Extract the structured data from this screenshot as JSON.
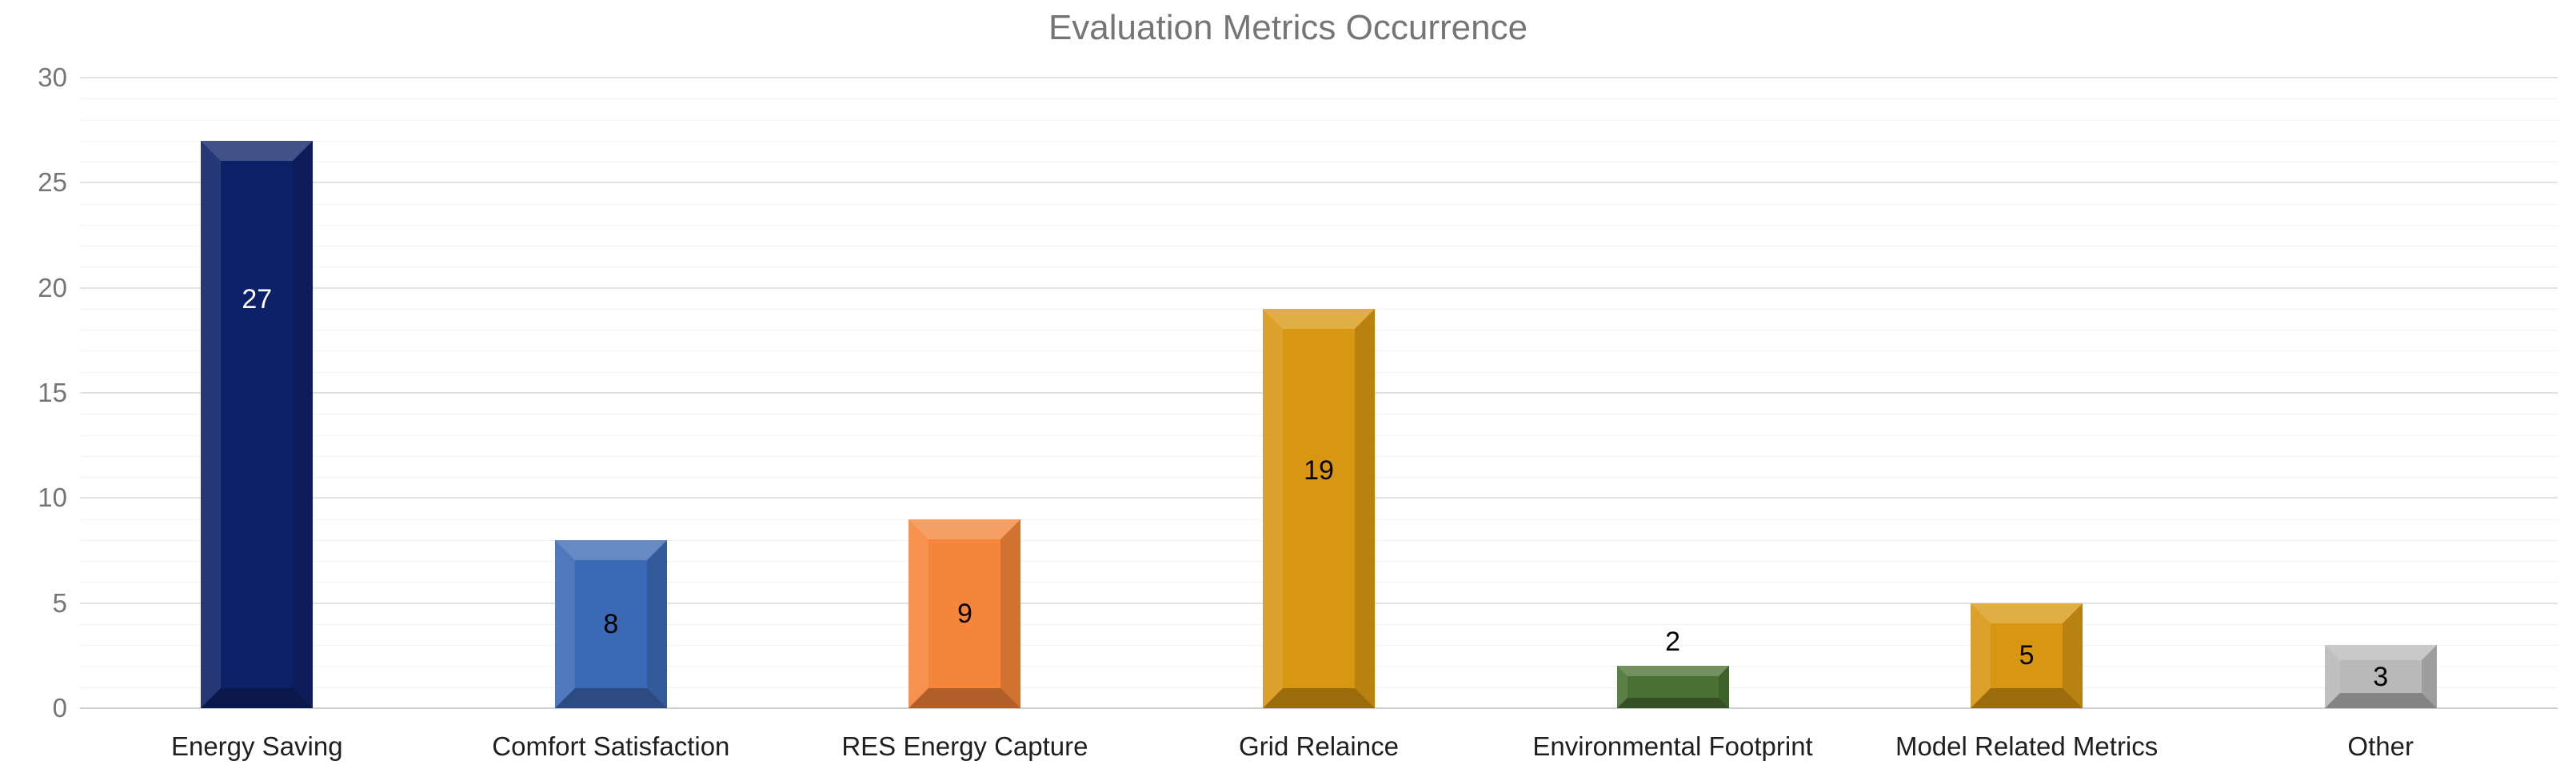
{
  "chart_data": {
    "type": "bar",
    "title": "Evaluation Metrics Occurrence",
    "categories": [
      "Energy Saving",
      "Comfort Satisfaction",
      "RES Energy Capture",
      "Grid Relaince",
      "Environmental Footprint",
      "Model Related Metrics",
      "Other"
    ],
    "values": [
      27,
      8,
      9,
      19,
      2,
      5,
      3
    ],
    "bar_colors": [
      "#0d2168",
      "#3c69b5",
      "#f5853a",
      "#d89712",
      "#4a7133",
      "#d89712",
      "#b9b9b9"
    ],
    "value_labels": [
      "27",
      "8",
      "9",
      "19",
      "2",
      "5",
      "3"
    ],
    "value_label_colors": [
      "#ffffff",
      "#000000",
      "#000000",
      "#000000",
      "#000000",
      "#000000",
      "#000000"
    ],
    "value_label_placement": [
      "inside",
      "inside",
      "inside",
      "inside",
      "above",
      "inside",
      "inside"
    ],
    "value_label_frac_from_bar_top": [
      0.28,
      0.5,
      0.5,
      0.405,
      null,
      0.5,
      0.5
    ],
    "xlabel": "",
    "ylabel": "",
    "ylim": [
      0,
      30
    ],
    "yticks": [
      0,
      5,
      10,
      15,
      20,
      25,
      30
    ],
    "minor_grid_step": 1,
    "grid": "horizontal major and minor gridlines",
    "legend": "none",
    "title_color": "#757575",
    "ytick_color": "#757575",
    "category_label_color": "#1f1f1f",
    "major_grid_color": "#e2e2e2",
    "minor_grid_color": "#f2f2f2",
    "baseline_color": "#cfcfcf"
  }
}
